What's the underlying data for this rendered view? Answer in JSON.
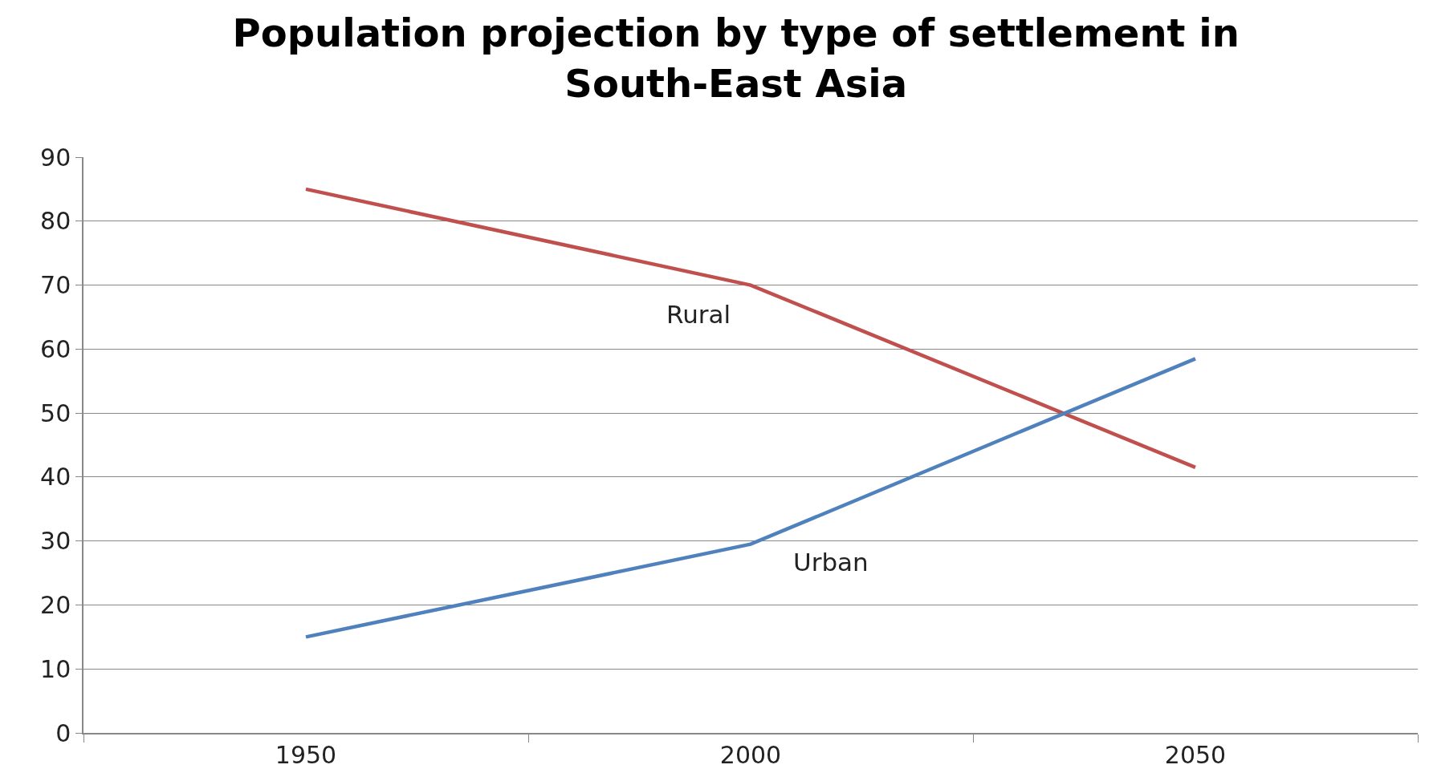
{
  "chart_data": {
    "type": "line",
    "title": "Population projection by type of settlement in South-East Asia",
    "categories": [
      "1950",
      "2000",
      "2050"
    ],
    "series": [
      {
        "name": "Rural",
        "color": "#c0504d",
        "values": [
          85,
          70,
          41.5
        ]
      },
      {
        "name": "Urban",
        "color": "#4f81bd",
        "values": [
          15,
          29.5,
          58.5
        ]
      }
    ],
    "ylim": [
      0,
      90
    ],
    "yticks": [
      0,
      10,
      20,
      30,
      40,
      50,
      60,
      70,
      80,
      90
    ],
    "grid": "y",
    "legend": false,
    "marker": "none",
    "line_style": "solid"
  }
}
